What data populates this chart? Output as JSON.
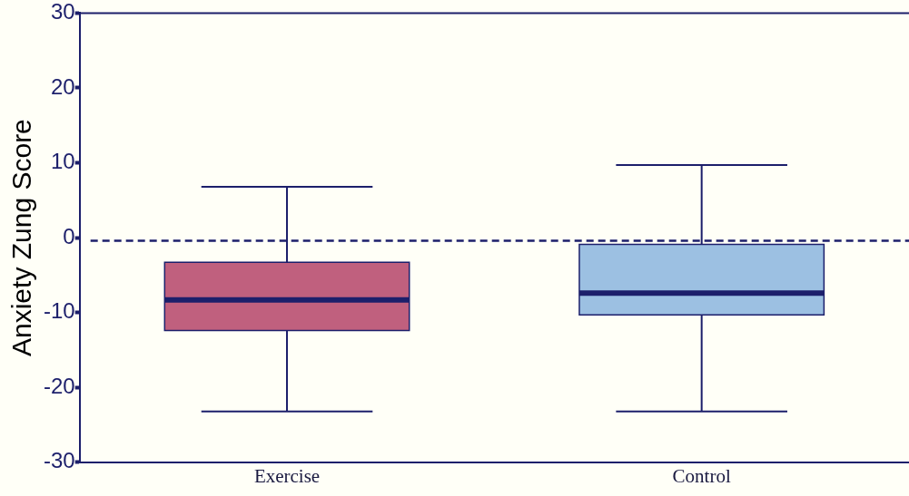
{
  "chart_data": {
    "type": "box",
    "ylabel": "Anxiety Zung Score",
    "categories": [
      "Exercise",
      "Control"
    ],
    "boxes": [
      {
        "low": -23.2,
        "q1": -12.4,
        "median": -8.3,
        "q3": -3.3,
        "high": 6.8
      },
      {
        "low": -23.2,
        "q1": -10.3,
        "median": -7.4,
        "q3": -0.9,
        "high": 9.7
      }
    ],
    "colors": [
      "#c0607e",
      "#9cc0e2"
    ],
    "ylim": [
      -30,
      30
    ],
    "yticks": [
      -30,
      -20,
      -10,
      0,
      10,
      20,
      30
    ],
    "grid": false,
    "ref_lines": [
      {
        "axis": "y",
        "value": -0.4,
        "color": "#1c1f6b",
        "line_style": "dashed"
      }
    ]
  }
}
